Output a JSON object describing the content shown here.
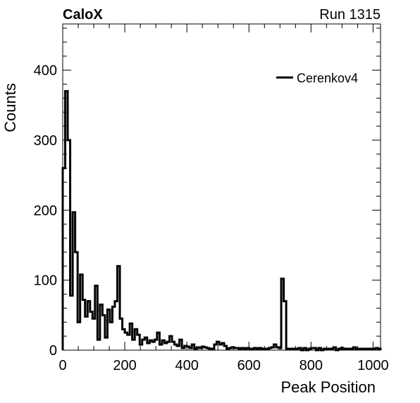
{
  "header": {
    "experiment": "CaloX",
    "run": "Run 1315"
  },
  "chart_data": {
    "type": "histogram",
    "xlabel": "Peak Position",
    "ylabel": "Counts",
    "xlim": [
      0,
      1024
    ],
    "ylim": [
      0,
      466
    ],
    "x_ticks": [
      0,
      200,
      400,
      600,
      800,
      1000
    ],
    "y_ticks": [
      0,
      100,
      200,
      300,
      400
    ],
    "grid": false,
    "legend": {
      "position": "top-right",
      "entries": [
        "Cerenkov4"
      ]
    },
    "series": [
      {
        "name": "Cerenkov4",
        "color": "#000000",
        "bin_width": 8,
        "bin_edges_start": 0,
        "values": [
          260,
          370,
          300,
          78,
          197,
          140,
          40,
          108,
          72,
          48,
          70,
          55,
          45,
          92,
          15,
          65,
          50,
          18,
          58,
          40,
          62,
          70,
          120,
          45,
          30,
          25,
          22,
          38,
          15,
          30,
          22,
          8,
          15,
          18,
          10,
          14,
          12,
          15,
          25,
          8,
          14,
          10,
          12,
          20,
          12,
          8,
          6,
          15,
          3,
          6,
          5,
          3,
          8,
          2,
          4,
          3,
          5,
          4,
          3,
          2,
          2,
          4,
          3,
          2,
          2,
          3,
          2,
          3,
          4,
          3,
          3,
          2,
          3,
          2,
          3,
          2,
          2,
          3,
          2,
          3,
          2,
          2,
          2,
          3,
          2,
          2,
          2,
          2,
          2,
          2,
          2,
          2,
          2,
          2,
          2,
          2,
          3,
          4,
          3,
          2,
          3,
          3,
          2,
          2,
          2,
          2,
          2,
          2,
          2,
          2,
          2,
          2,
          3,
          2,
          2,
          2,
          2,
          2,
          2,
          2,
          2,
          2,
          2,
          2,
          2,
          2,
          2,
          2
        ]
      }
    ],
    "overrides": [
      {
        "x_range": [
          488,
          528
        ],
        "values": [
          8,
          12,
          8,
          10,
          6
        ]
      },
      {
        "x_range": [
          672,
          720
        ],
        "values": [
          4,
          8,
          4,
          3,
          102,
          70
        ]
      },
      {
        "x_range": [
          760,
          800
        ],
        "values": [
          3,
          0,
          3,
          0,
          2
        ]
      },
      {
        "x_range": [
          816,
          840
        ],
        "values": [
          0,
          3,
          0
        ]
      },
      {
        "x_range": [
          872,
          888
        ],
        "values": [
          4,
          0
        ]
      },
      {
        "x_range": [
          936,
          944
        ],
        "values": [
          4
        ]
      },
      {
        "x_range": [
          1008,
          1024
        ],
        "values": [
          3,
          2
        ]
      }
    ]
  }
}
